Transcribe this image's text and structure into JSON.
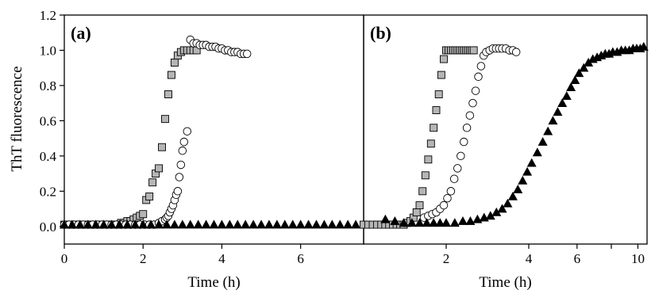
{
  "figure": {
    "ylabel": "ThT fluorescence"
  },
  "chart_data": [
    {
      "type": "scatter",
      "panel_label": "(a)",
      "xlabel": "Time (h)",
      "ylabel": "ThT fluorescence",
      "xlim": [
        0,
        7.6
      ],
      "ylim": [
        -0.1,
        1.2
      ],
      "x_scale": "linear",
      "x_ticks": [
        0,
        2,
        4,
        6
      ],
      "x_tick_labels": [
        "0",
        "2",
        "4",
        "6"
      ],
      "y_ticks": [
        0.0,
        0.2,
        0.4,
        0.6,
        0.8,
        1.0,
        1.2
      ],
      "y_tick_labels": [
        "0.0",
        "0.2",
        "0.4",
        "0.6",
        "0.8",
        "1.0",
        "1.2"
      ],
      "grid": false,
      "legend": "none",
      "series": [
        {
          "marker": "square",
          "color": "#b5b5b5",
          "x": [
            0.0,
            0.08,
            0.16,
            0.24,
            0.32,
            0.4,
            0.48,
            0.56,
            0.64,
            0.72,
            0.8,
            0.88,
            0.96,
            1.04,
            1.12,
            1.2,
            1.28,
            1.36,
            1.44,
            1.52,
            1.6,
            1.68,
            1.76,
            1.84,
            1.92,
            2.0,
            2.08,
            2.16,
            2.24,
            2.32,
            2.4,
            2.48,
            2.56,
            2.64,
            2.72,
            2.8,
            2.88,
            2.96,
            3.04,
            3.12,
            3.2,
            3.28,
            3.36
          ],
          "y": [
            0.01,
            0.01,
            0.01,
            0.01,
            0.01,
            0.01,
            0.01,
            0.01,
            0.01,
            0.01,
            0.01,
            0.01,
            0.01,
            0.01,
            0.01,
            0.01,
            0.01,
            0.01,
            0.02,
            0.02,
            0.03,
            0.03,
            0.04,
            0.05,
            0.06,
            0.07,
            0.15,
            0.17,
            0.25,
            0.3,
            0.33,
            0.45,
            0.61,
            0.75,
            0.86,
            0.93,
            0.97,
            0.99,
            1.0,
            1.0,
            1.0,
            1.0,
            1.0
          ]
        },
        {
          "marker": "circle",
          "color": "#ffffff",
          "x": [
            0.0,
            0.12,
            0.24,
            0.36,
            0.48,
            0.6,
            0.72,
            0.84,
            0.96,
            1.08,
            1.2,
            1.32,
            1.44,
            1.56,
            1.68,
            1.8,
            1.92,
            2.04,
            2.16,
            2.28,
            2.4,
            2.48,
            2.56,
            2.6,
            2.64,
            2.68,
            2.72,
            2.76,
            2.8,
            2.84,
            2.88,
            2.92,
            2.96,
            3.0,
            3.04,
            3.12,
            3.2,
            3.28,
            3.36,
            3.44,
            3.52,
            3.6,
            3.68,
            3.76,
            3.84,
            3.92,
            4.0,
            4.08,
            4.16,
            4.24,
            4.32,
            4.4,
            4.48,
            4.56,
            4.64
          ],
          "y": [
            0.01,
            0.01,
            0.01,
            0.01,
            0.01,
            0.01,
            0.01,
            0.01,
            0.01,
            0.01,
            0.01,
            0.01,
            0.01,
            0.01,
            0.01,
            0.01,
            0.01,
            0.01,
            0.01,
            0.01,
            0.02,
            0.03,
            0.04,
            0.05,
            0.06,
            0.08,
            0.1,
            0.12,
            0.15,
            0.18,
            0.2,
            0.28,
            0.35,
            0.43,
            0.48,
            0.54,
            1.06,
            1.04,
            1.04,
            1.03,
            1.03,
            1.03,
            1.02,
            1.02,
            1.02,
            1.01,
            1.01,
            1.0,
            1.0,
            0.99,
            0.99,
            0.99,
            0.98,
            0.98,
            0.98
          ]
        },
        {
          "marker": "triangle",
          "color": "#000000",
          "x": [
            0.0,
            0.2,
            0.4,
            0.6,
            0.8,
            1.0,
            1.2,
            1.4,
            1.6,
            1.8,
            2.0,
            2.2,
            2.4,
            2.6,
            2.8,
            3.0,
            3.2,
            3.4,
            3.6,
            3.8,
            4.0,
            4.2,
            4.4,
            4.6,
            4.8,
            5.0,
            5.2,
            5.4,
            5.6,
            5.8,
            6.0,
            6.2,
            6.4,
            6.6,
            6.8,
            7.0,
            7.2,
            7.4
          ],
          "y": [
            0.01,
            0.01,
            0.01,
            0.01,
            0.01,
            0.01,
            0.01,
            0.01,
            0.01,
            0.01,
            0.01,
            0.01,
            0.01,
            0.01,
            0.01,
            0.01,
            0.01,
            0.01,
            0.01,
            0.01,
            0.01,
            0.01,
            0.01,
            0.01,
            0.01,
            0.01,
            0.01,
            0.01,
            0.01,
            0.01,
            0.01,
            0.01,
            0.01,
            0.01,
            0.01,
            0.01,
            0.01,
            0.01
          ]
        }
      ]
    },
    {
      "type": "scatter",
      "panel_label": "(b)",
      "xlabel": "Time (h)",
      "xlim": [
        1.0,
        10.8
      ],
      "ylim": [
        -0.1,
        1.2
      ],
      "x_scale": "log",
      "x_ticks": [
        2,
        4,
        6,
        8,
        10
      ],
      "x_tick_labels": [
        "2",
        "4",
        "6",
        "",
        "10"
      ],
      "grid": false,
      "legend": "none",
      "series": [
        {
          "marker": "square",
          "color": "#b5b5b5",
          "x": [
            1.0,
            1.04,
            1.08,
            1.12,
            1.16,
            1.2,
            1.24,
            1.28,
            1.32,
            1.36,
            1.4,
            1.44,
            1.48,
            1.52,
            1.56,
            1.6,
            1.64,
            1.68,
            1.72,
            1.76,
            1.8,
            1.84,
            1.88,
            1.92,
            1.96,
            2.0,
            2.04,
            2.08,
            2.12,
            2.16,
            2.2,
            2.24,
            2.28,
            2.32,
            2.36,
            2.4,
            2.44,
            2.48,
            2.52
          ],
          "y": [
            0.01,
            0.01,
            0.01,
            0.01,
            0.01,
            0.01,
            0.01,
            0.01,
            0.01,
            0.01,
            0.01,
            0.02,
            0.03,
            0.05,
            0.08,
            0.12,
            0.2,
            0.29,
            0.38,
            0.47,
            0.56,
            0.66,
            0.75,
            0.86,
            0.95,
            1.0,
            1.0,
            1.0,
            1.0,
            1.0,
            1.0,
            1.0,
            1.0,
            1.0,
            1.0,
            1.0,
            1.0,
            1.0,
            1.0
          ]
        },
        {
          "marker": "circle",
          "color": "#ffffff",
          "x": [
            1.66,
            1.72,
            1.78,
            1.84,
            1.9,
            1.96,
            2.02,
            2.08,
            2.14,
            2.2,
            2.26,
            2.32,
            2.38,
            2.44,
            2.5,
            2.56,
            2.62,
            2.68,
            2.74,
            2.8,
            2.88,
            2.96,
            3.04,
            3.12,
            3.2,
            3.3,
            3.4,
            3.5,
            3.6
          ],
          "y": [
            0.05,
            0.06,
            0.07,
            0.08,
            0.1,
            0.12,
            0.16,
            0.2,
            0.27,
            0.33,
            0.4,
            0.48,
            0.56,
            0.63,
            0.7,
            0.77,
            0.85,
            0.91,
            0.97,
            0.99,
            1.0,
            1.01,
            1.01,
            1.01,
            1.01,
            1.01,
            1.0,
            1.0,
            0.99
          ]
        },
        {
          "marker": "triangle",
          "color": "#000000",
          "x": [
            1.2,
            1.3,
            1.4,
            1.5,
            1.6,
            1.7,
            1.8,
            1.9,
            2.0,
            2.15,
            2.3,
            2.45,
            2.6,
            2.75,
            2.9,
            3.05,
            3.2,
            3.35,
            3.5,
            3.65,
            3.8,
            3.95,
            4.1,
            4.3,
            4.5,
            4.7,
            4.9,
            5.1,
            5.3,
            5.5,
            5.7,
            5.9,
            6.1,
            6.35,
            6.6,
            6.85,
            7.1,
            7.35,
            7.6,
            7.85,
            8.1,
            8.4,
            8.7,
            9.0,
            9.3,
            9.6,
            9.9,
            10.2,
            10.5
          ],
          "y": [
            0.04,
            0.03,
            0.02,
            0.02,
            0.02,
            0.02,
            0.02,
            0.02,
            0.02,
            0.02,
            0.03,
            0.03,
            0.04,
            0.05,
            0.06,
            0.08,
            0.1,
            0.13,
            0.17,
            0.21,
            0.26,
            0.31,
            0.36,
            0.42,
            0.48,
            0.54,
            0.6,
            0.65,
            0.7,
            0.74,
            0.79,
            0.83,
            0.87,
            0.9,
            0.93,
            0.95,
            0.96,
            0.97,
            0.98,
            0.98,
            0.99,
            0.99,
            1.0,
            1.0,
            1.0,
            1.01,
            1.01,
            1.01,
            1.02
          ]
        }
      ]
    }
  ]
}
